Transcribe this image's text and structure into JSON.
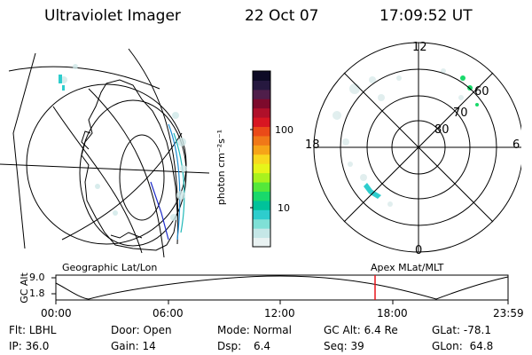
{
  "header": {
    "instrument": "Ultraviolet Imager",
    "date": "22 Oct 07",
    "time": "17:09:52 UT"
  },
  "panels": {
    "left_caption": "Geographic Lat/Lon",
    "right_caption": "Apex MLat/MLT"
  },
  "polar": {
    "mlt_labels": {
      "top": "12",
      "bottom": "0",
      "left": "18",
      "right": "6"
    },
    "lat_labels": [
      "60",
      "70",
      "80"
    ]
  },
  "colorbar": {
    "unit_label": "photon cm⁻²s⁻¹",
    "tick_labels": [
      "100",
      "10"
    ],
    "colors": [
      "#e9f2f2",
      "#c5e7e7",
      "#7fe0d6",
      "#2ecdcd",
      "#00c29a",
      "#19d96b",
      "#54e83a",
      "#a8f21e",
      "#e6f51a",
      "#f8d81e",
      "#f6a418",
      "#f07818",
      "#ea4a18",
      "#d81622",
      "#b0102a",
      "#7d0a2c",
      "#4f1e4a",
      "#26183f",
      "#0d0a25"
    ]
  },
  "altitude_plot": {
    "ylabel": "GC Alt",
    "ytick_top": "9.0",
    "ytick_bottom": "1.8",
    "x_ticks": [
      "00:00",
      "06:00",
      "12:00",
      "18:00",
      "23:59"
    ],
    "current_marker_color": "#e8141b"
  },
  "status": {
    "filter": {
      "label": "Flt:",
      "value": "LBHL"
    },
    "ip": {
      "label": "IP:",
      "value": "36.0"
    },
    "door": {
      "label": "Door:",
      "value": "Open"
    },
    "gain": {
      "label": "Gain:",
      "value": "14"
    },
    "mode": {
      "label": "Mode:",
      "value": "Normal"
    },
    "dsp": {
      "label": "Dsp:",
      "value": "6.4"
    },
    "gc_alt": {
      "label": "GC Alt:",
      "value": "6.4 Re"
    },
    "seq": {
      "label": "Seq:",
      "value": "39"
    },
    "glat": {
      "label": "GLat:",
      "value": "-78.1"
    },
    "glon": {
      "label": "GLon:",
      "value": "64.8"
    }
  }
}
